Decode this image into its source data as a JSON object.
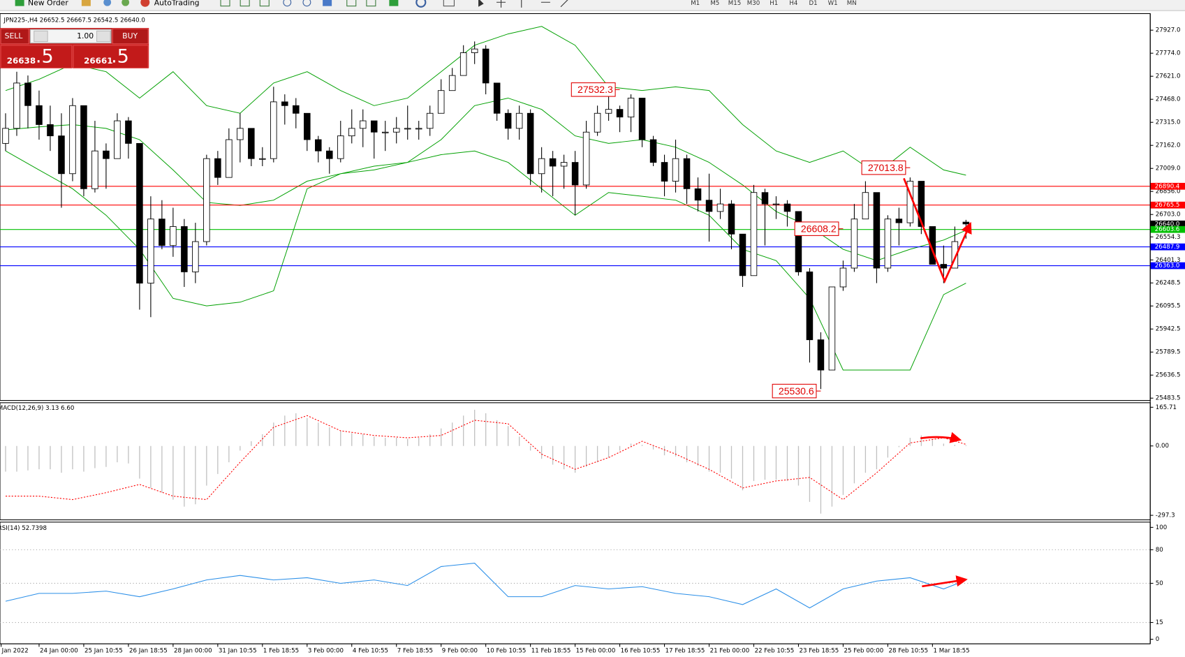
{
  "toolbar": {
    "new_order": "New Order",
    "autotrading": "AutoTrading",
    "timeframes": [
      "M1",
      "M5",
      "M15",
      "M30",
      "H1",
      "H4",
      "D1",
      "W1",
      "MN"
    ]
  },
  "trade_panel": {
    "sell": "SELL",
    "lots": "1.00",
    "buy": "BUY",
    "sell_main": "26638",
    "sell_pips": ".5",
    "buy_main": "26661",
    "buy_pips": ".5"
  },
  "chart_data": [
    {
      "type": "candlestick",
      "title": "JPN225-,H4 26652.5 26667.5 26542.5 26640.0",
      "xlim": [
        -0.5,
        102.5
      ],
      "ylim": [
        25468,
        28037
      ],
      "yticks": [
        {
          "value": 27927,
          "label": "27927.0"
        },
        {
          "value": 27774,
          "label": "27774.0"
        },
        {
          "value": 27621,
          "label": "27621.0"
        },
        {
          "value": 27468,
          "label": "27468.0"
        },
        {
          "value": 27315,
          "label": "27315.0"
        },
        {
          "value": 27162,
          "label": "27162.0"
        },
        {
          "value": 27009,
          "label": "27009.0"
        },
        {
          "value": 26856,
          "label": "26856.0"
        },
        {
          "value": 26703,
          "label": "26703.0"
        },
        26554.3,
        26401.3,
        26248.5,
        26095.5,
        25942.5,
        25789.5,
        25636.5,
        25483.5
      ],
      "xticks": [
        {
          "value": -0.4,
          "label": "Jan 2022"
        },
        {
          "value": 3,
          "label": "24 Jan 00:00"
        },
        {
          "value": 7,
          "label": "25 Jan 10:55"
        },
        {
          "value": 11,
          "label": "26 Jan 18:55"
        },
        {
          "value": 15,
          "label": "28 Jan 00:00"
        },
        {
          "value": 19,
          "label": "31 Jan 10:55"
        },
        {
          "value": 23,
          "label": "1 Feb 18:55"
        },
        {
          "value": 27,
          "label": "3 Feb 00:00"
        },
        {
          "value": 31,
          "label": "4 Feb 10:55"
        },
        {
          "value": 35,
          "label": "7 Feb 18:55"
        },
        {
          "value": 39,
          "label": "9 Feb 00:00"
        },
        {
          "value": 43,
          "label": "10 Feb 10:55"
        },
        {
          "value": 47,
          "label": "11 Feb 18:55"
        },
        {
          "value": 51,
          "label": "15 Feb 00:00"
        },
        {
          "value": 55,
          "label": "16 Feb 10:55"
        },
        {
          "value": 59,
          "label": "17 Feb 18:55"
        },
        {
          "value": 63,
          "label": "21 Feb 00:00"
        },
        {
          "value": 67,
          "label": "22 Feb 10:55"
        },
        {
          "value": 71,
          "label": "23 Feb 18:55"
        },
        {
          "value": 75,
          "label": "25 Feb 00:00"
        },
        {
          "value": 79,
          "label": "28 Feb 10:55"
        },
        {
          "value": 83,
          "label": "1 Mar 18:55"
        }
      ],
      "up_color": "#ffffff",
      "down_color": "#000000",
      "candles": [
        [
          27175,
          27375,
          27125,
          27275
        ],
        [
          27275,
          27651,
          27225,
          27576
        ],
        [
          27576,
          27626,
          27275,
          27426
        ],
        [
          27426,
          27526,
          27200,
          27300
        ],
        [
          27300,
          27426,
          27125,
          27225
        ],
        [
          27225,
          27375,
          26748,
          26974
        ],
        [
          26974,
          27476,
          26924,
          27426
        ],
        [
          27426,
          27426,
          26824,
          26874
        ],
        [
          26874,
          27325,
          26849,
          27125
        ],
        [
          27125,
          27175,
          26874,
          27074
        ],
        [
          27074,
          27375,
          27074,
          27325
        ],
        [
          27325,
          27350,
          27074,
          27175
        ],
        [
          27175,
          27175,
          26071,
          26247
        ],
        [
          26247,
          26824,
          26021,
          26673
        ],
        [
          26673,
          26798,
          26472,
          26497
        ],
        [
          26497,
          26748,
          26422,
          26623
        ],
        [
          26623,
          26673,
          26222,
          26322
        ],
        [
          26322,
          26648,
          26247,
          26523
        ],
        [
          26523,
          27100,
          26497,
          27074
        ],
        [
          27074,
          27125,
          26899,
          26949
        ],
        [
          26949,
          27275,
          26949,
          27200
        ],
        [
          27200,
          27375,
          27049,
          27275
        ],
        [
          27275,
          27275,
          27024,
          27074
        ],
        [
          27074,
          27150,
          27024,
          27074
        ],
        [
          27074,
          27551,
          27049,
          27451
        ],
        [
          27451,
          27501,
          27300,
          27426
        ],
        [
          27426,
          27476,
          27275,
          27375
        ],
        [
          27375,
          27375,
          27125,
          27200
        ],
        [
          27200,
          27225,
          27049,
          27125
        ],
        [
          27125,
          27150,
          26974,
          27074
        ],
        [
          27074,
          27325,
          27049,
          27225
        ],
        [
          27225,
          27401,
          27175,
          27275
        ],
        [
          27275,
          27401,
          27150,
          27325
        ],
        [
          27325,
          27325,
          27074,
          27250
        ],
        [
          27250,
          27325,
          27125,
          27250
        ],
        [
          27250,
          27350,
          27175,
          27275
        ],
        [
          27275,
          27426,
          27200,
          27275
        ],
        [
          27275,
          27325,
          27200,
          27275
        ],
        [
          27275,
          27426,
          27225,
          27375
        ],
        [
          27375,
          27601,
          27375,
          27526
        ],
        [
          27526,
          27676,
          27526,
          27626
        ],
        [
          27626,
          27827,
          27626,
          27777
        ],
        [
          27777,
          27852,
          27702,
          27802
        ],
        [
          27802,
          27827,
          27501,
          27576
        ],
        [
          27576,
          27576,
          27325,
          27375
        ],
        [
          27375,
          27401,
          27200,
          27275
        ],
        [
          27275,
          27426,
          27200,
          27375
        ],
        [
          27375,
          27401,
          26899,
          26974
        ],
        [
          26974,
          27150,
          26849,
          27074
        ],
        [
          27074,
          27125,
          26824,
          27024
        ],
        [
          27024,
          27100,
          26874,
          27049
        ],
        [
          27049,
          27125,
          26698,
          26899
        ],
        [
          26899,
          27325,
          26874,
          27250
        ],
        [
          27250,
          27426,
          27225,
          27375
        ],
        [
          27375,
          27526,
          27325,
          27401
        ],
        [
          27401,
          27426,
          27250,
          27350
        ],
        [
          27350,
          27501,
          27250,
          27476
        ],
        [
          27476,
          27476,
          27150,
          27200
        ],
        [
          27200,
          27225,
          27024,
          27049
        ],
        [
          27049,
          27100,
          26824,
          26924
        ],
        [
          26924,
          27200,
          26849,
          27074
        ],
        [
          27074,
          27100,
          26773,
          26874
        ],
        [
          26874,
          26949,
          26723,
          26798
        ],
        [
          26798,
          26974,
          26523,
          26723
        ],
        [
          26723,
          26874,
          26673,
          26773
        ],
        [
          26773,
          26798,
          26472,
          26573
        ],
        [
          26573,
          26573,
          26222,
          26297
        ],
        [
          26297,
          26899,
          26297,
          26849
        ],
        [
          26849,
          26874,
          26497,
          26773
        ],
        [
          26773,
          26824,
          26673,
          26773
        ],
        [
          26773,
          26798,
          26623,
          26723
        ],
        [
          26723,
          26723,
          26297,
          26322
        ],
        [
          26322,
          26347,
          25720,
          25871
        ],
        [
          25871,
          25921,
          25544,
          25670
        ],
        [
          25670,
          26222,
          25670,
          26222
        ],
        [
          26222,
          26397,
          26196,
          26347
        ],
        [
          26347,
          26773,
          26322,
          26673
        ],
        [
          26673,
          26924,
          26673,
          26849
        ],
        [
          26849,
          26849,
          26247,
          26347
        ],
        [
          26347,
          26698,
          26322,
          26673
        ],
        [
          26673,
          26748,
          26497,
          26648
        ],
        [
          26648,
          26949,
          26623,
          26924
        ],
        [
          26924,
          26924,
          26573,
          26623
        ],
        [
          26623,
          26623,
          26372,
          26372
        ],
        [
          26372,
          26497,
          26247,
          26347
        ],
        [
          26347,
          26623,
          26347,
          26523
        ],
        [
          26652.5,
          26667.5,
          26542.5,
          26640
        ]
      ],
      "bands": {
        "color": "#00a000",
        "x": [
          0,
          3,
          6,
          9,
          12,
          15,
          18,
          21,
          24,
          27,
          30,
          33,
          36,
          39,
          42,
          45,
          48,
          51,
          54,
          57,
          60,
          63,
          66,
          69,
          72,
          75,
          78,
          81,
          84,
          86
        ],
        "upper": [
          27526,
          27601,
          27702,
          27651,
          27476,
          27651,
          27426,
          27375,
          27576,
          27651,
          27526,
          27426,
          27476,
          27651,
          27827,
          27902,
          27952,
          27827,
          27551,
          27526,
          27551,
          27526,
          27300,
          27125,
          27049,
          27125,
          26974,
          27150,
          26999,
          26964
        ],
        "middle": [
          27265,
          27285,
          27300,
          27275,
          27200,
          26999,
          26783,
          26763,
          26798,
          26924,
          26974,
          26999,
          27049,
          27200,
          27426,
          27476,
          27401,
          27225,
          27175,
          27200,
          27150,
          27049,
          26899,
          26723,
          26623,
          26472,
          26397,
          26472,
          26533,
          26598
        ],
        "lower": [
          27125,
          26999,
          26874,
          26698,
          26472,
          26146,
          26096,
          26121,
          26196,
          26874,
          26974,
          27024,
          27049,
          27100,
          27125,
          27049,
          26874,
          26698,
          26849,
          26824,
          26798,
          26698,
          26472,
          26397,
          26146,
          25670,
          25670,
          25670,
          26171,
          26247
        ]
      },
      "hlines": [
        {
          "value": 26890.4,
          "color": "#ff0000"
        },
        {
          "value": 26765.5,
          "color": "#ff0000"
        },
        {
          "value": 26640,
          "label": "26640.0",
          "color": "#000000",
          "line": false
        },
        {
          "value": 26603.6,
          "color": "#00c000"
        },
        {
          "value": 26487.9,
          "color": "#0000ff"
        },
        {
          "value": 26363,
          "label": "26363.0",
          "color": "#0000ff"
        }
      ],
      "annotations": [
        {
          "index": 55,
          "value": 27532.3
        },
        {
          "index": 81,
          "value": 27013.8
        },
        {
          "index": 75,
          "value": 26608.2
        },
        {
          "index": 73,
          "value": 25530.6
        }
      ]
    },
    {
      "type": "macd",
      "title": "MACD(12,26,9) 3.13 6.60",
      "xlim": [
        -0.5,
        102.5
      ],
      "ylim": [
        -316.7,
        185.1
      ],
      "yticks": [
        165.71,
        {
          "value": 0,
          "label": "0.00"
        },
        -297.3
      ],
      "histogram_color": "#c0c0c0",
      "histogram": [
        -110,
        -110,
        -105,
        -100,
        -100,
        -115,
        -100,
        -110,
        -95,
        -90,
        -70,
        -75,
        -140,
        -180,
        -200,
        -230,
        -260,
        -250,
        -170,
        -120,
        -70,
        -20,
        20,
        50,
        100,
        130,
        140,
        120,
        100,
        80,
        65,
        55,
        50,
        40,
        35,
        35,
        30,
        35,
        50,
        75,
        100,
        130,
        155,
        140,
        110,
        85,
        40,
        -20,
        -55,
        -80,
        -100,
        -115,
        -90,
        -70,
        -50,
        -20,
        10,
        5,
        -15,
        -40,
        -45,
        -70,
        -85,
        -110,
        -115,
        -140,
        -190,
        -150,
        -145,
        -145,
        -150,
        -170,
        -240,
        -290,
        -260,
        -210,
        -160,
        -115,
        -100,
        -50,
        -5,
        35,
        45,
        25,
        10,
        5,
        3.13
      ],
      "signal": {
        "color": "#ff0000",
        "x": [
          0,
          3,
          6,
          9,
          12,
          15,
          18,
          21,
          24,
          27,
          30,
          33,
          36,
          39,
          42,
          45,
          48,
          51,
          54,
          57,
          60,
          63,
          66,
          69,
          72,
          75,
          78,
          81,
          84,
          86
        ],
        "values": [
          -215,
          -215,
          -230,
          -200,
          -165,
          -215,
          -230,
          -70,
          80,
          130,
          65,
          45,
          35,
          45,
          110,
          95,
          -35,
          -100,
          -50,
          20,
          -35,
          -100,
          -180,
          -150,
          -135,
          -230,
          -115,
          13,
          35,
          6.6
        ]
      }
    },
    {
      "type": "line",
      "title": "RSI(14) 52.7398",
      "xlim": [
        -0.5,
        102.5
      ],
      "ylim": [
        -4.05,
        104.7
      ],
      "yticks": [
        100,
        80,
        50,
        15,
        0
      ],
      "levels": [
        80,
        50,
        15
      ],
      "color": "#2b8fe8",
      "x": [
        0,
        3,
        6,
        9,
        12,
        15,
        18,
        21,
        24,
        27,
        30,
        33,
        36,
        39,
        42,
        45,
        48,
        51,
        54,
        57,
        60,
        63,
        66,
        69,
        72,
        75,
        78,
        81,
        84,
        86
      ],
      "values": [
        34,
        41,
        41,
        43,
        38,
        45,
        53,
        57,
        53,
        55,
        50,
        53,
        48,
        65,
        68,
        38,
        38,
        48,
        45,
        47,
        41,
        38,
        31,
        45,
        28,
        45,
        52,
        55,
        45,
        52.7398
      ]
    }
  ]
}
